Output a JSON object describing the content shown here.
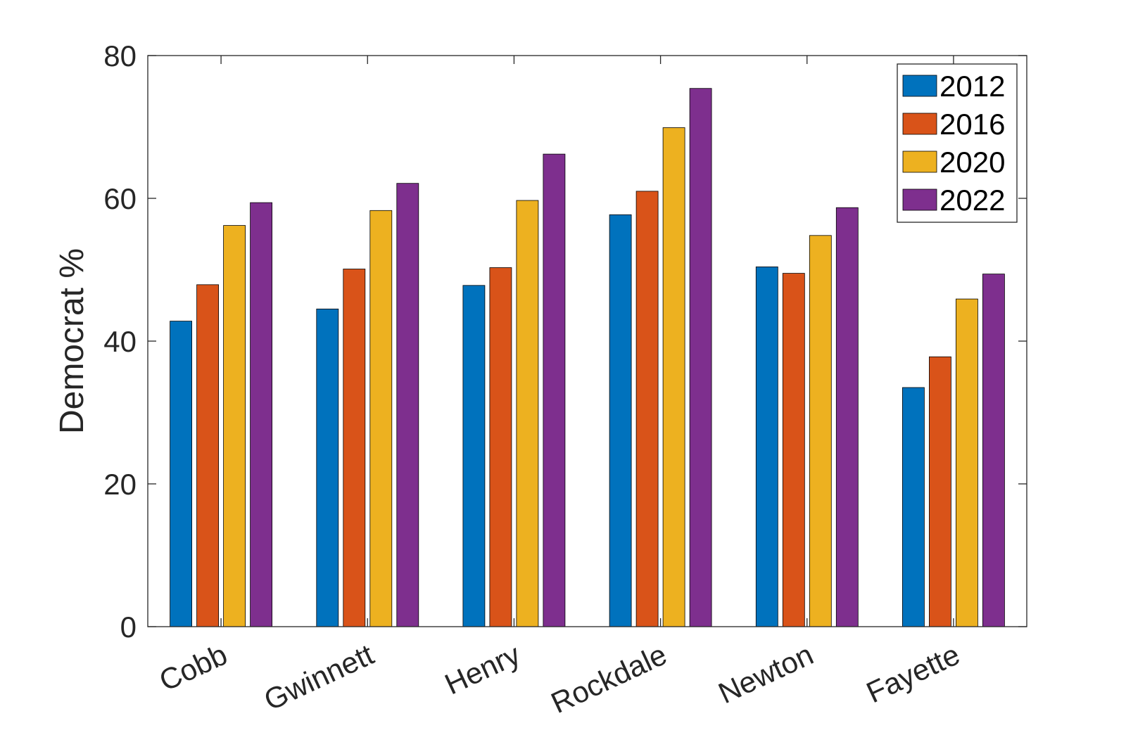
{
  "chart_data": {
    "type": "bar",
    "title": "",
    "xlabel": "",
    "ylabel": "Democrat %",
    "ylim": [
      0,
      80
    ],
    "yticks": [
      0,
      20,
      40,
      60,
      80
    ],
    "grid": false,
    "legend_position": "top-right",
    "categories": [
      "Cobb",
      "Gwinnett",
      "Henry",
      "Rockdale",
      "Newton",
      "Fayette"
    ],
    "series": [
      {
        "name": "2012",
        "color": "#0072BD",
        "values": [
          42.8,
          44.5,
          47.8,
          57.7,
          50.4,
          33.5
        ]
      },
      {
        "name": "2016",
        "color": "#D95319",
        "values": [
          47.9,
          50.1,
          50.3,
          61.0,
          49.5,
          37.8
        ]
      },
      {
        "name": "2020",
        "color": "#EDB120",
        "values": [
          56.2,
          58.3,
          59.7,
          69.9,
          54.8,
          45.9
        ]
      },
      {
        "name": "2022",
        "color": "#7E2F8E",
        "values": [
          59.4,
          62.1,
          66.2,
          75.4,
          58.7,
          49.4
        ]
      }
    ]
  }
}
